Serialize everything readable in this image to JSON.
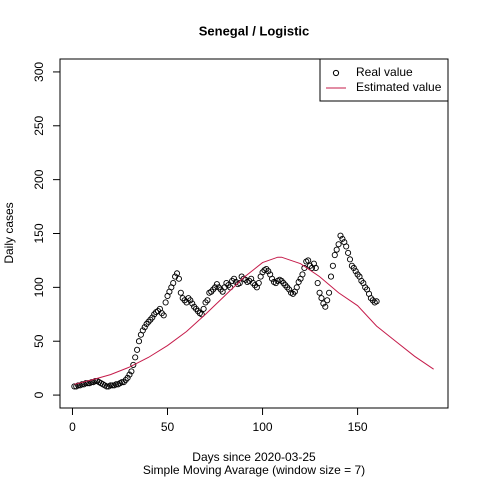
{
  "chart_data": {
    "type": "scatter",
    "title": "Senegal / Logistic",
    "xlabel": "Days since 2020-03-25",
    "subtitle": "Simple Moving Avarage (window size = 7)",
    "ylabel": "Daily cases",
    "xlim": [
      -6.56,
      197.56
    ],
    "ylim": [
      -12,
      312
    ],
    "xticks": [
      0,
      50,
      100,
      150
    ],
    "yticks": [
      0,
      50,
      100,
      150,
      200,
      250,
      300
    ],
    "legend": "top-right",
    "series": [
      {
        "name": "Real value",
        "color": "#000000",
        "marker": "circle",
        "x": [
          1,
          2,
          3,
          4,
          5,
          6,
          7,
          8,
          9,
          10,
          11,
          12,
          13,
          14,
          15,
          16,
          17,
          18,
          19,
          20,
          21,
          22,
          23,
          24,
          25,
          26,
          27,
          28,
          29,
          30,
          31,
          32,
          33,
          34,
          35,
          36,
          37,
          38,
          39,
          40,
          41,
          42,
          43,
          44,
          45,
          46,
          47,
          48,
          49,
          50,
          51,
          52,
          53,
          54,
          55,
          56,
          57,
          58,
          59,
          60,
          61,
          62,
          63,
          64,
          65,
          66,
          67,
          68,
          69,
          70,
          71,
          72,
          73,
          74,
          75,
          76,
          77,
          78,
          79,
          80,
          81,
          82,
          83,
          84,
          85,
          86,
          87,
          88,
          89,
          90,
          91,
          92,
          93,
          94,
          95,
          96,
          97,
          98,
          99,
          100,
          101,
          102,
          103,
          104,
          105,
          106,
          107,
          108,
          109,
          110,
          111,
          112,
          113,
          114,
          115,
          116,
          117,
          118,
          119,
          120,
          121,
          122,
          123,
          124,
          125,
          126,
          127,
          128,
          129,
          130,
          131,
          132,
          133,
          134,
          135,
          136,
          137,
          138,
          139,
          140,
          141,
          142,
          143,
          144,
          145,
          146,
          147,
          148,
          149,
          150,
          151,
          152,
          153,
          154,
          155,
          156,
          157,
          158,
          159,
          160
        ],
        "values": [
          8,
          8,
          9,
          9,
          10,
          10,
          11,
          11,
          11,
          12,
          12,
          13,
          13,
          12,
          11,
          10,
          9,
          8,
          8,
          9,
          9,
          9,
          10,
          10,
          11,
          12,
          12,
          14,
          16,
          19,
          22,
          28,
          35,
          42,
          50,
          56,
          60,
          63,
          66,
          68,
          70,
          72,
          75,
          77,
          78,
          80,
          76,
          74,
          86,
          92,
          96,
          100,
          104,
          110,
          113,
          108,
          95,
          90,
          88,
          86,
          90,
          88,
          85,
          82,
          80,
          78,
          76,
          75,
          80,
          86,
          88,
          95,
          96,
          98,
          100,
          103,
          100,
          98,
          96,
          100,
          104,
          102,
          100,
          106,
          108,
          105,
          103,
          104,
          110,
          108,
          107,
          105,
          106,
          108,
          104,
          102,
          100,
          104,
          110,
          114,
          116,
          117,
          115,
          112,
          108,
          105,
          104,
          106,
          107,
          106,
          104,
          102,
          100,
          98,
          95,
          94,
          96,
          100,
          105,
          108,
          112,
          118,
          124,
          125,
          120,
          118,
          122,
          118,
          104,
          95,
          90,
          85,
          82,
          88,
          95,
          110,
          120,
          130,
          135,
          140,
          148,
          145,
          142,
          138,
          132,
          126,
          120,
          118,
          115,
          112,
          110,
          106,
          104,
          100,
          98,
          94,
          90,
          88,
          86,
          87
        ]
      },
      {
        "name": "Estimated value",
        "color": "#c51b4a",
        "marker": "line",
        "x": [
          1,
          10,
          20,
          30,
          40,
          50,
          60,
          70,
          80,
          90,
          100,
          108,
          110,
          120,
          130,
          140,
          150,
          160,
          170,
          180,
          190
        ],
        "values": [
          10,
          14,
          19,
          26,
          35,
          46,
          59,
          75,
          92,
          109,
          123,
          128,
          128,
          122,
          110,
          95,
          83,
          64,
          50,
          36,
          24
        ]
      }
    ]
  }
}
